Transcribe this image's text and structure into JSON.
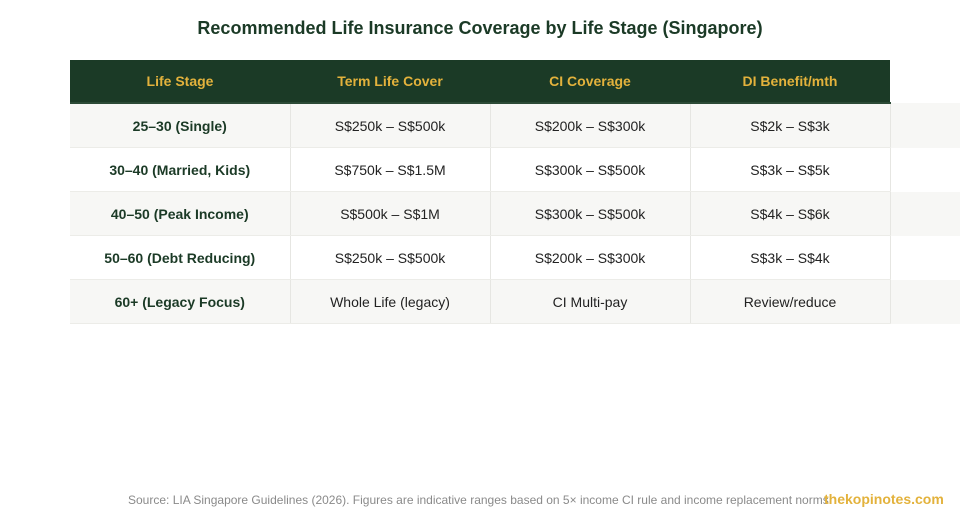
{
  "title": "Recommended Life Insurance Coverage by Life Stage (Singapore)",
  "table": {
    "headers": [
      "Life Stage",
      "Term Life Cover",
      "CI Coverage",
      "DI Benefit/mth"
    ],
    "rows": [
      [
        "25–30 (Single)",
        "S$250k – S$500k",
        "S$200k – S$300k",
        "S$2k – S$3k"
      ],
      [
        "30–40 (Married, Kids)",
        "S$750k – S$1.5M",
        "S$300k – S$500k",
        "S$3k – S$5k"
      ],
      [
        "40–50 (Peak Income)",
        "S$500k – S$1M",
        "S$300k – S$500k",
        "S$4k – S$6k"
      ],
      [
        "50–60 (Debt Reducing)",
        "S$250k – S$500k",
        "S$200k – S$300k",
        "S$3k – S$4k"
      ],
      [
        "60+ (Legacy Focus)",
        "Whole Life (legacy)",
        "CI Multi-pay",
        "Review/reduce"
      ]
    ]
  },
  "footer": {
    "source": "Source: LIA Singapore Guidelines (2026). Figures are indicative ranges based on 5× income CI rule and income replacement norms.",
    "brand": "thekopinotes.com"
  },
  "colors": {
    "header_bg": "#1b3a26",
    "header_text": "#e3b23c",
    "brand": "#e3b23c"
  }
}
